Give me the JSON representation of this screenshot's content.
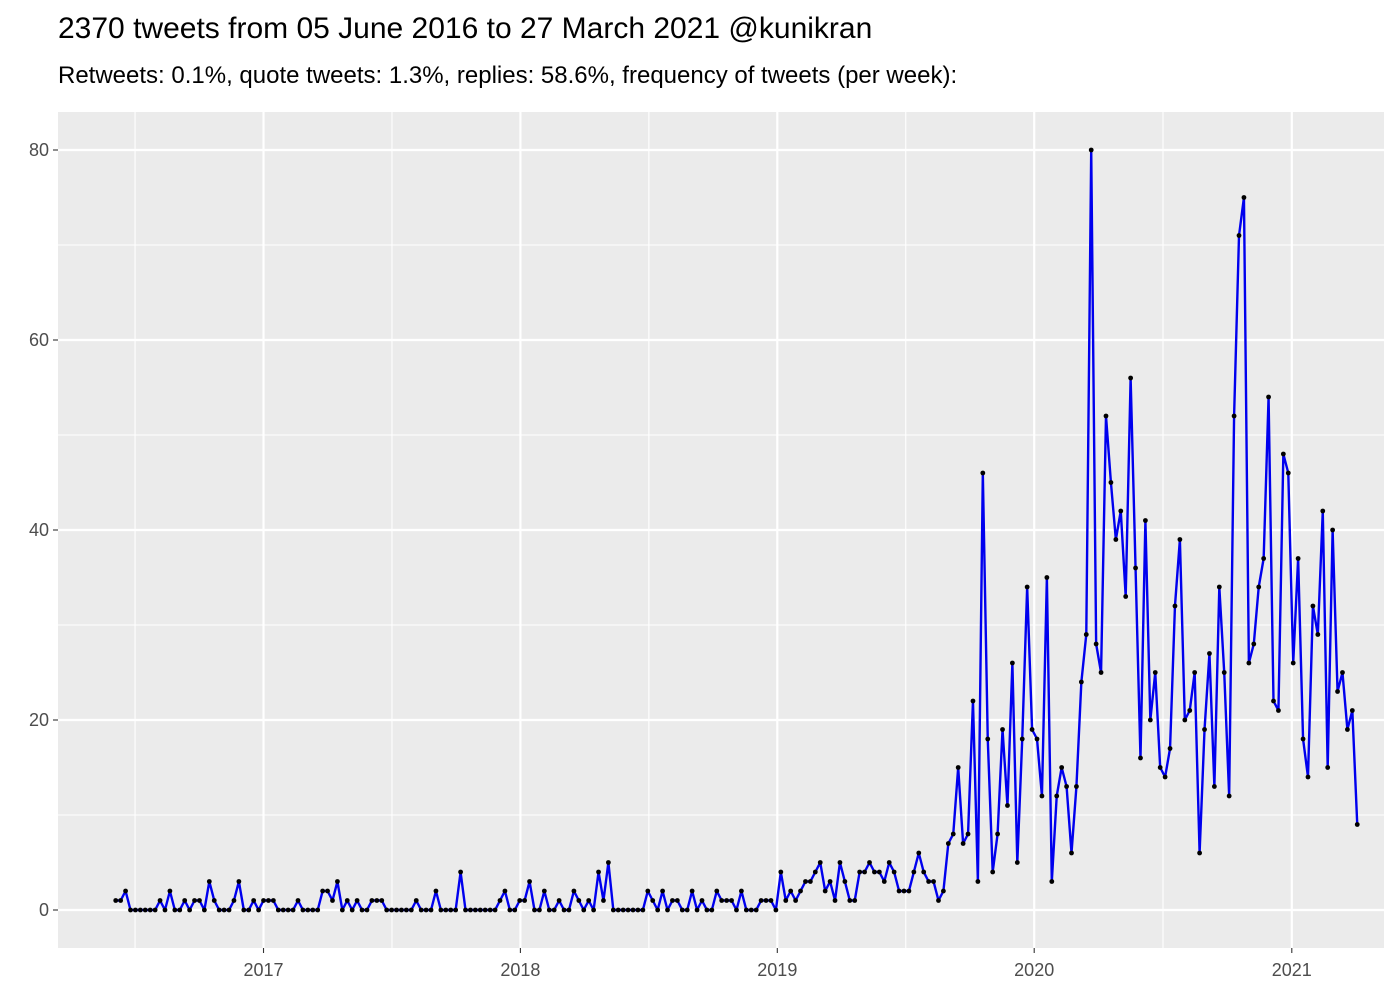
{
  "header": {
    "title": "2370 tweets from 05 June 2016 to 27 March 2021 @kunikran",
    "subtitle": "Retweets: 0.1%, quote tweets: 1.3%, replies: 58.6%, frequency of tweets (per week):"
  },
  "chart_data": {
    "type": "line",
    "title": "2370 tweets from 05 June 2016 to 27 March 2021 @kunikran",
    "subtitle": "Retweets: 0.1%, quote tweets: 1.3%, replies: 58.6%, frequency of tweets (per week):",
    "xlabel": "",
    "ylabel": "",
    "x_start": "2016-06-05",
    "x_step_days": 7,
    "xlim": [
      "2016-03-15",
      "2021-05-12"
    ],
    "ylim": [
      -4,
      84
    ],
    "x_ticks": [
      {
        "date": "2017-01-01",
        "label": "2017"
      },
      {
        "date": "2018-01-01",
        "label": "2018"
      },
      {
        "date": "2019-01-01",
        "label": "2019"
      },
      {
        "date": "2020-01-01",
        "label": "2020"
      },
      {
        "date": "2021-01-01",
        "label": "2021"
      }
    ],
    "y_ticks": [
      0,
      20,
      40,
      60,
      80
    ],
    "grid": true,
    "line_color": "#0000ee",
    "point_color": "#000000",
    "panel_background": "#ebebeb",
    "series": [
      {
        "values": [
          1,
          1,
          2,
          0,
          0,
          0,
          0,
          0,
          0,
          1,
          0,
          2,
          0,
          0,
          1,
          0,
          1,
          1,
          0,
          3,
          1,
          0,
          0,
          0,
          1,
          3,
          0,
          0,
          1,
          0,
          1,
          1,
          1,
          0,
          0,
          0,
          0,
          1,
          0,
          0,
          0,
          0,
          2,
          2,
          1,
          3,
          0,
          1,
          0,
          1,
          0,
          0,
          1,
          1,
          1,
          0,
          0,
          0,
          0,
          0,
          0,
          1,
          0,
          0,
          0,
          2,
          0,
          0,
          0,
          0,
          4,
          0,
          0,
          0,
          0,
          0,
          0,
          0,
          1,
          2,
          0,
          0,
          1,
          1,
          3,
          0,
          0,
          2,
          0,
          0,
          1,
          0,
          0,
          2,
          1,
          0,
          1,
          0,
          4,
          1,
          5,
          0,
          0,
          0,
          0,
          0,
          0,
          0,
          2,
          1,
          0,
          2,
          0,
          1,
          1,
          0,
          0,
          2,
          0,
          1,
          0,
          0,
          2,
          1,
          1,
          1,
          0,
          2,
          0,
          0,
          0,
          1,
          1,
          1,
          0,
          4,
          1,
          2,
          1,
          2,
          3,
          3,
          4,
          5,
          2,
          3,
          1,
          5,
          3,
          1,
          1,
          4,
          4,
          5,
          4,
          4,
          3,
          5,
          4,
          2,
          2,
          2,
          4,
          6,
          4,
          3,
          3,
          1,
          2,
          7,
          8,
          15,
          7,
          8,
          22,
          3,
          46,
          18,
          4,
          8,
          19,
          11,
          26,
          5,
          18,
          34,
          19,
          18,
          12,
          35,
          3,
          12,
          15,
          13,
          6,
          13,
          24,
          29,
          80,
          28,
          25,
          52,
          45,
          39,
          42,
          33,
          56,
          36,
          16,
          41,
          20,
          25,
          15,
          14,
          17,
          32,
          39,
          20,
          21,
          25,
          6,
          19,
          27,
          13,
          34,
          25,
          12,
          52,
          71,
          75,
          26,
          28,
          34,
          37,
          54,
          22,
          21,
          48,
          46,
          26,
          37,
          18,
          14,
          32,
          29,
          42,
          15,
          40,
          23,
          25,
          19,
          21,
          9
        ]
      }
    ]
  }
}
